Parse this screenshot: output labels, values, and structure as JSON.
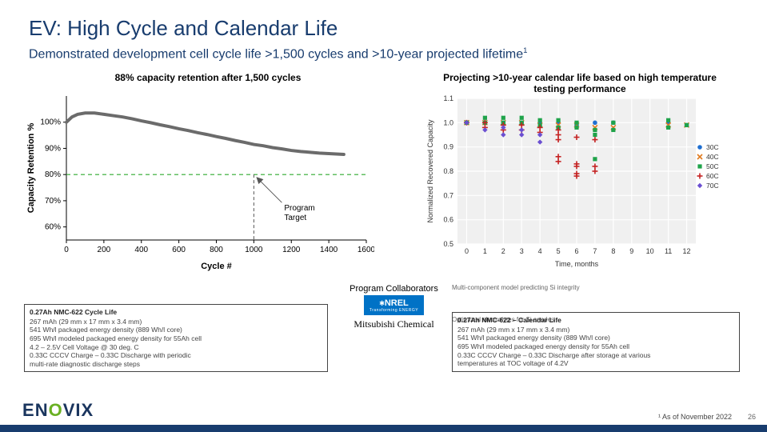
{
  "title": "EV: High Cycle and Calendar Life",
  "subtitle_main": "Demonstrated development cell cycle life >1,500 cycles and >10-year projected lifetime",
  "subtitle_sup": "1",
  "chart_left": {
    "title": "88% capacity retention after 1,500 cycles",
    "type": "line",
    "xlabel": "Cycle #",
    "ylabel": "Capacity Retention %",
    "xlim": [
      0,
      1600
    ],
    "xtick_step": 200,
    "ylim": [
      55,
      110
    ],
    "yticks": [
      60,
      70,
      80,
      90,
      100
    ],
    "line_color": "#6b6b6b",
    "target_line": {
      "y": 80,
      "x": 1000,
      "color": "#2eaa2e",
      "label": "Program\nTarget"
    },
    "data": [
      [
        0,
        100
      ],
      [
        30,
        102
      ],
      [
        60,
        103
      ],
      [
        100,
        103.5
      ],
      [
        150,
        103.5
      ],
      [
        200,
        103
      ],
      [
        250,
        102.5
      ],
      [
        300,
        102
      ],
      [
        350,
        101.3
      ],
      [
        400,
        100.5
      ],
      [
        450,
        99.8
      ],
      [
        500,
        99
      ],
      [
        550,
        98.3
      ],
      [
        600,
        97.5
      ],
      [
        650,
        96.8
      ],
      [
        700,
        96
      ],
      [
        750,
        95.3
      ],
      [
        800,
        94.5
      ],
      [
        850,
        93.8
      ],
      [
        900,
        93
      ],
      [
        950,
        92.3
      ],
      [
        1000,
        91.5
      ],
      [
        1050,
        91
      ],
      [
        1100,
        90.3
      ],
      [
        1150,
        89.8
      ],
      [
        1200,
        89.2
      ],
      [
        1250,
        88.8
      ],
      [
        1300,
        88.5
      ],
      [
        1350,
        88.2
      ],
      [
        1400,
        88
      ],
      [
        1450,
        87.8
      ],
      [
        1480,
        87.7
      ]
    ],
    "background": "#ffffff",
    "font_size": 10
  },
  "chart_right": {
    "title": "Projecting >10-year calendar life based on high temperature testing performance",
    "type": "scatter",
    "xlabel": "Time, months",
    "ylabel": "Normalized Recovered Capacity",
    "xlim": [
      -0.5,
      12.5
    ],
    "xticks": [
      0,
      1,
      2,
      3,
      4,
      5,
      6,
      7,
      8,
      9,
      10,
      11,
      12
    ],
    "ylim": [
      0.5,
      1.1
    ],
    "yticks": [
      0.5,
      0.6,
      0.7,
      0.8,
      0.9,
      1.0,
      1.1
    ],
    "background": "#f0f0f0",
    "grid_color": "#ffffff",
    "font_size": 9,
    "series": [
      {
        "name": "30C",
        "color": "#1f6fd1",
        "marker": "circle",
        "points": [
          [
            0,
            1.0
          ],
          [
            1,
            1.0
          ],
          [
            2,
            1.0
          ],
          [
            3,
            1.0
          ],
          [
            4,
            1.0
          ],
          [
            5,
            1.0
          ],
          [
            6,
            0.99
          ],
          [
            7,
            1.0
          ],
          [
            8,
            1.0
          ],
          [
            11,
            1.0
          ],
          [
            12,
            0.99
          ]
        ]
      },
      {
        "name": "40C",
        "color": "#e07b1f",
        "marker": "x",
        "points": [
          [
            0,
            1.0
          ],
          [
            1,
            1.0
          ],
          [
            2,
            1.0
          ],
          [
            3,
            1.0
          ],
          [
            4,
            0.99
          ],
          [
            5,
            0.99
          ],
          [
            6,
            0.99
          ],
          [
            7,
            0.98
          ],
          [
            8,
            0.98
          ],
          [
            11,
            0.99
          ],
          [
            12,
            0.99
          ]
        ]
      },
      {
        "name": "50C",
        "color": "#1fa34a",
        "marker": "square",
        "points": [
          [
            0,
            1.0
          ],
          [
            1,
            1.0
          ],
          [
            1,
            1.02
          ],
          [
            2,
            1.0
          ],
          [
            2,
            1.02
          ],
          [
            3,
            1.0
          ],
          [
            3,
            1.02
          ],
          [
            4,
            0.99
          ],
          [
            4,
            1.01
          ],
          [
            5,
            0.98
          ],
          [
            5,
            1.01
          ],
          [
            6,
            0.98
          ],
          [
            6,
            1.0
          ],
          [
            7,
            0.97
          ],
          [
            7,
            0.95
          ],
          [
            7,
            0.85
          ],
          [
            8,
            1.0
          ],
          [
            8,
            0.97
          ],
          [
            11,
            1.01
          ],
          [
            11,
            0.98
          ],
          [
            12,
            0.99
          ]
        ]
      },
      {
        "name": "60C",
        "color": "#c52222",
        "marker": "plus",
        "points": [
          [
            0,
            1.0
          ],
          [
            1,
            0.98
          ],
          [
            1,
            1.0
          ],
          [
            2,
            0.97
          ],
          [
            2,
            0.99
          ],
          [
            3,
            0.97
          ],
          [
            3,
            0.99
          ],
          [
            4,
            0.96
          ],
          [
            4,
            0.98
          ],
          [
            5,
            0.93
          ],
          [
            5,
            0.95
          ],
          [
            5,
            0.97
          ],
          [
            5,
            0.86
          ],
          [
            5,
            0.84
          ],
          [
            6,
            0.83
          ],
          [
            6,
            0.82
          ],
          [
            6,
            0.79
          ],
          [
            6,
            0.94
          ],
          [
            6,
            0.78
          ],
          [
            7,
            0.8
          ],
          [
            7,
            0.82
          ],
          [
            7,
            0.93
          ]
        ]
      },
      {
        "name": "70C",
        "color": "#6b4fd1",
        "marker": "diamond",
        "points": [
          [
            0,
            1.0
          ],
          [
            1,
            0.97
          ],
          [
            2,
            0.95
          ],
          [
            2,
            0.98
          ],
          [
            3,
            0.95
          ],
          [
            3,
            0.97
          ],
          [
            4,
            0.92
          ],
          [
            4,
            0.95
          ]
        ]
      }
    ]
  },
  "note_left": {
    "title": "0.27Ah NMC-622 Cycle Life",
    "lines": [
      "267 mAh (29 mm x 17 mm x 3.4 mm)",
      "541 Wh/l packaged energy density (889 Wh/l core)",
      "695 Wh/l modeled packaged energy density for 55Ah cell",
      "4.2 – 2.5V Cell Voltage @ 30 deg. C",
      "0.33C CCCV Charge – 0.33C Discharge  with periodic",
      "multi-rate diagnostic discharge steps"
    ]
  },
  "note_right": {
    "title": "0.27Ah NMC-622 – Calendar Life",
    "lines": [
      "267 mAh (29 mm x 17 mm x 3.4 mm)",
      "541 Wh/l packaged energy density (889 Wh/l core)",
      "695 Wh/l modeled packaged energy density for 55Ah cell",
      "0.33C CCCV Charge – 0.33C Discharge after storage at various",
      "  temperatures at TOC voltage of 4.2V"
    ]
  },
  "collab": {
    "title": "Program Collaborators",
    "nrel": "NREL",
    "nrel_sub": "Transforming ENERGY",
    "mitsu": "Mitsubishi Chemical",
    "note1": "Multi-component model predicting Si integrity",
    "note2": "Optimized electrolytes for Si anodes"
  },
  "logo": {
    "text": "ENOVIX",
    "accent_index": 2,
    "color": "#1a355e",
    "accent_color": "#6ab023"
  },
  "footnote": "¹ As of November 2022",
  "page_number": "26",
  "bottombar_color": "#183c6e"
}
